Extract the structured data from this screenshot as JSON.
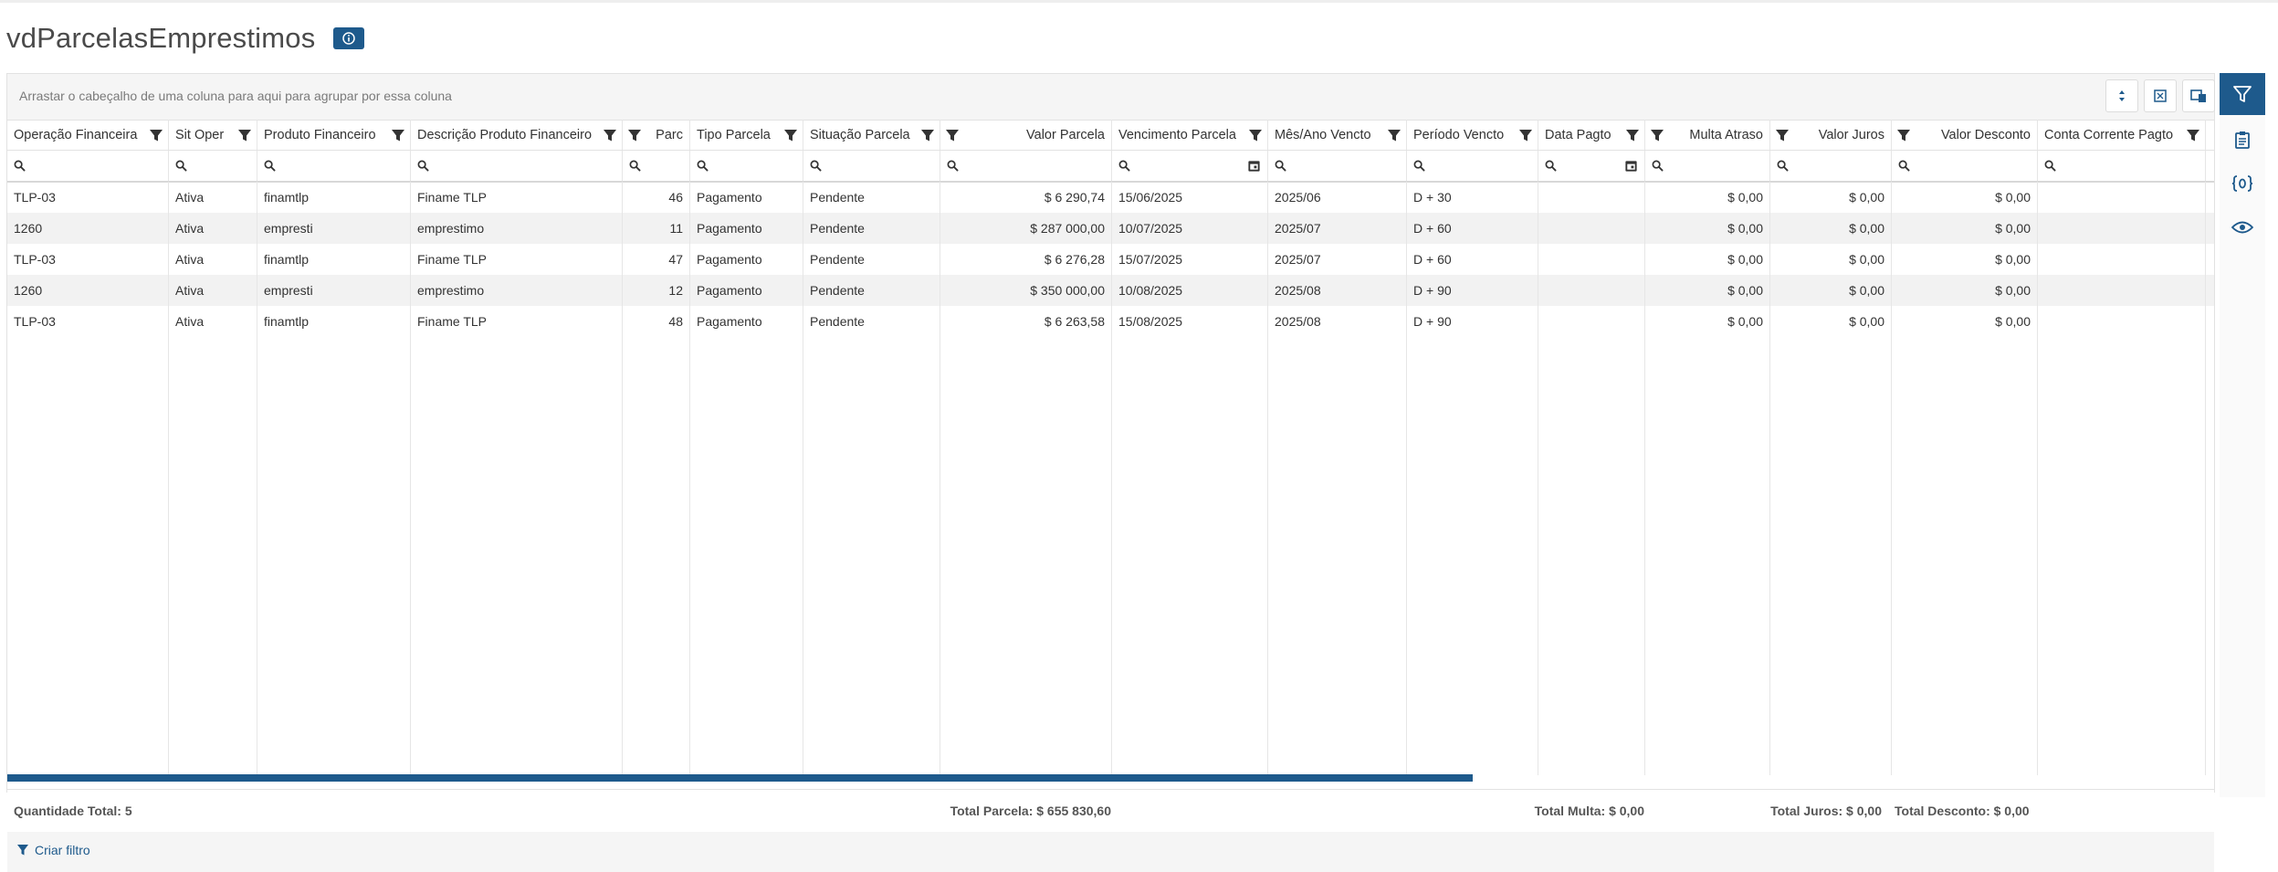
{
  "page": {
    "title": "vdParcelasEmprestimos"
  },
  "colors": {
    "accent": "#1e5a8c",
    "alt_row": "#f2f2f2"
  },
  "toolbar": {
    "group_hint": "Arrastar o cabeçalho de uma coluna para aqui para agrupar por essa coluna",
    "buttons": [
      "sort-order-icon",
      "export-excel-icon",
      "column-chooser-icon"
    ]
  },
  "columns": [
    {
      "label": "Operação Financeira"
    },
    {
      "label": "Sit Oper"
    },
    {
      "label": "Produto Financeiro"
    },
    {
      "label": "Descrição Produto Financeiro"
    },
    {
      "label": "Parc"
    },
    {
      "label": "Tipo Parcela"
    },
    {
      "label": "Situação Parcela"
    },
    {
      "label": "Valor Parcela"
    },
    {
      "label": "Vencimento Parcela"
    },
    {
      "label": "Mês/Ano Vencto"
    },
    {
      "label": "Período Vencto"
    },
    {
      "label": "Data Pagto"
    },
    {
      "label": "Multa Atraso"
    },
    {
      "label": "Valor Juros"
    },
    {
      "label": "Valor Desconto"
    },
    {
      "label": "Conta Corrente Pagto"
    }
  ],
  "rows": [
    {
      "cells": [
        "TLP-03",
        "Ativa",
        "finamtlp",
        "Finame TLP",
        "46",
        "Pagamento",
        "Pendente",
        "$ 6 290,74",
        "15/06/2025",
        "2025/06",
        "D + 30",
        "",
        "$ 0,00",
        "$ 0,00",
        "$ 0,00",
        ""
      ]
    },
    {
      "cells": [
        "1260",
        "Ativa",
        "empresti",
        "emprestimo",
        "11",
        "Pagamento",
        "Pendente",
        "$ 287 000,00",
        "10/07/2025",
        "2025/07",
        "D + 60",
        "",
        "$ 0,00",
        "$ 0,00",
        "$ 0,00",
        ""
      ]
    },
    {
      "cells": [
        "TLP-03",
        "Ativa",
        "finamtlp",
        "Finame TLP",
        "47",
        "Pagamento",
        "Pendente",
        "$ 6 276,28",
        "15/07/2025",
        "2025/07",
        "D + 60",
        "",
        "$ 0,00",
        "$ 0,00",
        "$ 0,00",
        ""
      ]
    },
    {
      "cells": [
        "1260",
        "Ativa",
        "empresti",
        "emprestimo",
        "12",
        "Pagamento",
        "Pendente",
        "$ 350 000,00",
        "10/08/2025",
        "2025/08",
        "D + 90",
        "",
        "$ 0,00",
        "$ 0,00",
        "$ 0,00",
        ""
      ]
    },
    {
      "cells": [
        "TLP-03",
        "Ativa",
        "finamtlp",
        "Finame TLP",
        "48",
        "Pagamento",
        "Pendente",
        "$ 6 263,58",
        "15/08/2025",
        "2025/08",
        "D + 90",
        "",
        "$ 0,00",
        "$ 0,00",
        "$ 0,00",
        ""
      ]
    }
  ],
  "summary": {
    "quantity": "Quantidade Total: 5",
    "total_parcela": "Total Parcela: $ 655 830,60",
    "total_multa": "Total Multa: $ 0,00",
    "total_juros": "Total Juros: $ 0,00",
    "total_desconto": "Total Desconto: $ 0,00"
  },
  "footer": {
    "create_filter": "Criar filtro"
  },
  "side_panel": {
    "buttons": [
      "filter-panel-icon",
      "clipboard-icon",
      "variables-icon",
      "eye-icon"
    ]
  }
}
